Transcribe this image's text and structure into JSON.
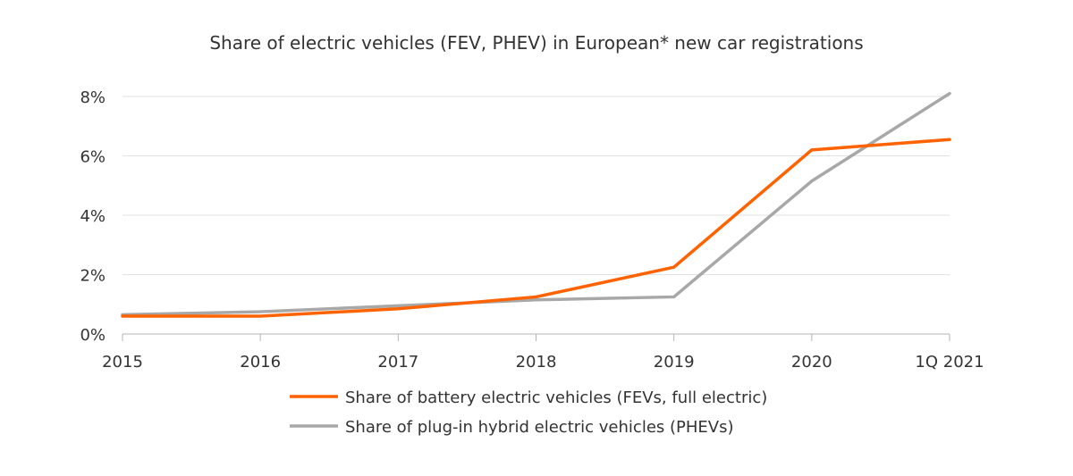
{
  "chart_data": {
    "type": "line",
    "title": "Share of electric vehicles (FEV, PHEV) in European* new car registrations",
    "categories": [
      "2015",
      "2016",
      "2017",
      "2018",
      "2019",
      "2020",
      "1Q 2021"
    ],
    "yticks": [
      "0%",
      "2%",
      "4%",
      "6%",
      "8%"
    ],
    "ylim": [
      0,
      8
    ],
    "grid": true,
    "legend_position": "bottom",
    "series": [
      {
        "name": "Share of battery electric vehicles (FEVs, full electric)",
        "color": "#ff6200",
        "values": [
          0.6,
          0.6,
          0.85,
          1.25,
          2.25,
          6.2,
          6.55
        ]
      },
      {
        "name": "Share of plug-in hybrid electric vehicles (PHEVs)",
        "color": "#a8a8a8",
        "values": [
          0.65,
          0.75,
          0.95,
          1.15,
          1.25,
          5.15,
          8.1
        ]
      }
    ]
  }
}
